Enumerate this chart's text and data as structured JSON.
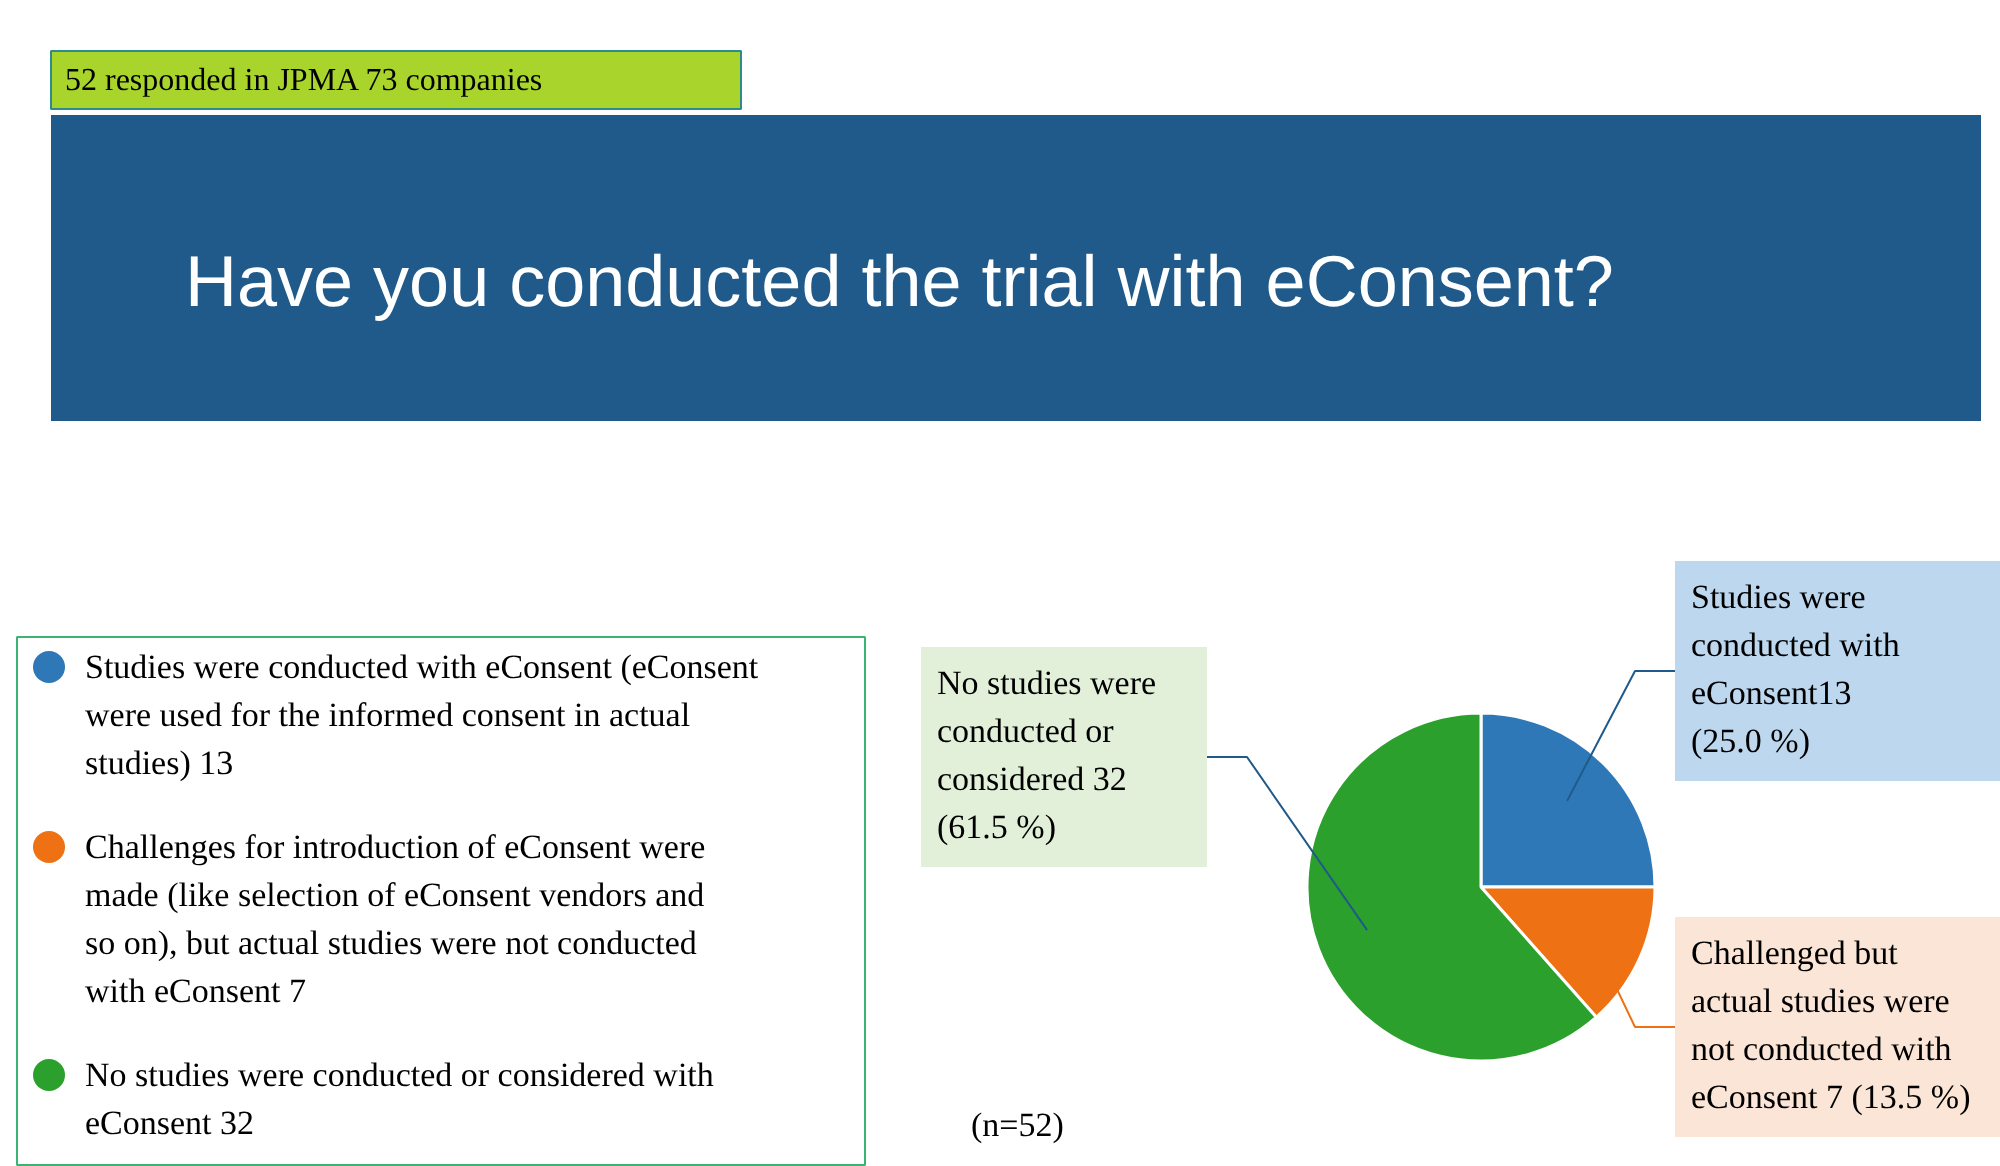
{
  "chart_data": {
    "type": "pie",
    "title": "Have you conducted the trial with eConsent?",
    "categories": [
      "Studies were conducted with eConsent (eConsent were used for the informed consent in actual studies) 13",
      "Challenges for introduction of eConsent were made (like selection of eConsent vendors and so on), but actual studies were not conducted with eConsent 7",
      "No studies were conducted or considered with eConsent 32"
    ],
    "values": [
      13,
      7,
      32
    ],
    "colors": [
      "#2e78b7",
      "#ee7113",
      "#2ca02c"
    ],
    "value_labels": [
      "Studies were conducted with eConsent13 (25.0 %)",
      "Challenged but actual studies were not conducted with eConsent 7 (13.5 %)",
      "No studies were conducted or considered 32 (61.5 %)"
    ],
    "legend": "left",
    "annotations": [
      "52 responded in JPMA 73 companies",
      "(n=52)"
    ]
  }
}
